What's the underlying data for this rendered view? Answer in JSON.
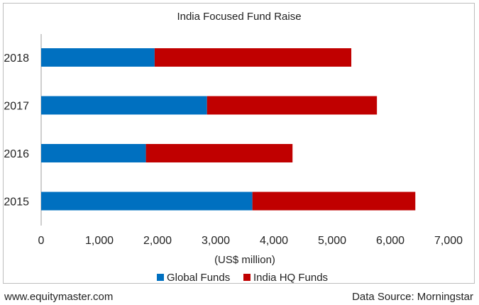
{
  "chart_data": {
    "type": "bar",
    "orientation": "horizontal",
    "stacked": true,
    "title": "India Focused Fund Raise",
    "xlabel": "(US$ million)",
    "ylabel": "",
    "categories": [
      "2018",
      "2017",
      "2016",
      "2015"
    ],
    "series": [
      {
        "name": "Global Funds",
        "color": "#0070c0",
        "values": [
          1950,
          2850,
          1800,
          3630
        ]
      },
      {
        "name": "India HQ Funds",
        "color": "#c00000",
        "values": [
          3380,
          2920,
          2520,
          2800
        ]
      }
    ],
    "xlim": [
      0,
      7000
    ],
    "xticks": [
      "0",
      "1,000",
      "2,000",
      "3,000",
      "4,000",
      "5,000",
      "6,000",
      "7,000"
    ],
    "legend_position": "bottom",
    "grid": false
  },
  "footer": {
    "left": "www.equitymaster.com",
    "right": "Data Source: Morningstar"
  }
}
